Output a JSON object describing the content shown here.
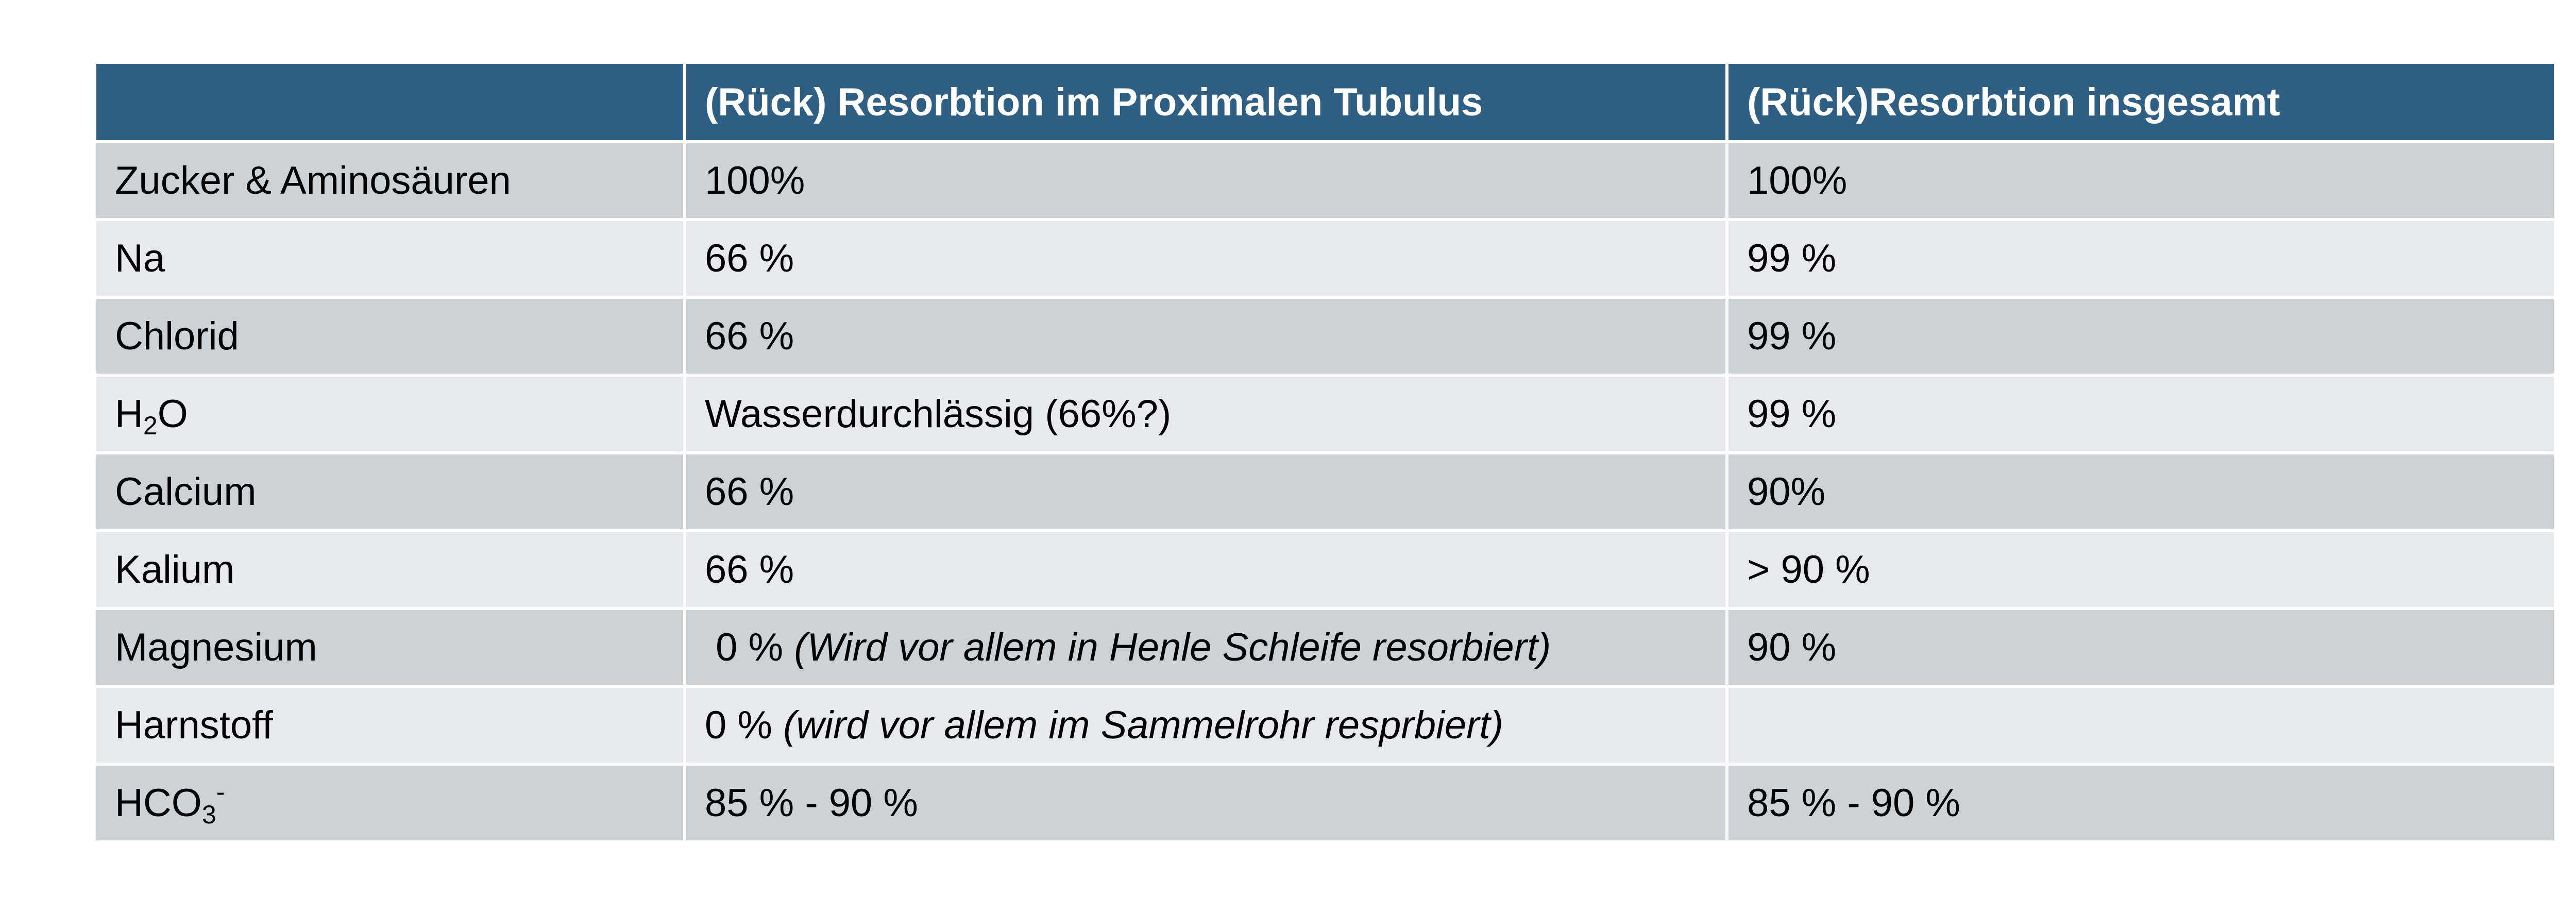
{
  "table": {
    "headers": [
      "",
      "(Rück) Resorbtion im Proximalen Tubulus",
      "(Rück)Resorbtion insgesamt"
    ],
    "rows": [
      {
        "substance": "Zucker & Aminosäuren",
        "proximal": "100%",
        "proximal_note": "",
        "total": "100%"
      },
      {
        "substance": "Na",
        "proximal": "66 %",
        "proximal_note": "",
        "total": "99 %"
      },
      {
        "substance": "Chlorid",
        "proximal": "66 %",
        "proximal_note": "",
        "total": "99 %"
      },
      {
        "substance_base": "H",
        "substance_sub": "2",
        "substance_tail": "O",
        "proximal": "Wasserdurchlässig (66%?)",
        "proximal_note": "",
        "total": "99 %"
      },
      {
        "substance": "Calcium",
        "proximal": "66 %",
        "proximal_note": "",
        "total": "90%"
      },
      {
        "substance": "Kalium",
        "proximal": "66 %",
        "proximal_note": "",
        "total": "> 90 %"
      },
      {
        "substance": "Magnesium",
        "proximal": " 0 % ",
        "proximal_note": "(Wird vor allem in Henle Schleife resorbiert)",
        "total": "90 %"
      },
      {
        "substance": "Harnstoff",
        "proximal": "0 % ",
        "proximal_note": "(wird vor allem im Sammelrohr resprbiert)",
        "total": ""
      },
      {
        "substance_base": "HCO",
        "substance_sub": "3",
        "substance_sup": "-",
        "proximal": "85 % - 90 %",
        "proximal_note": "",
        "total": "85 % - 90 %"
      }
    ]
  }
}
